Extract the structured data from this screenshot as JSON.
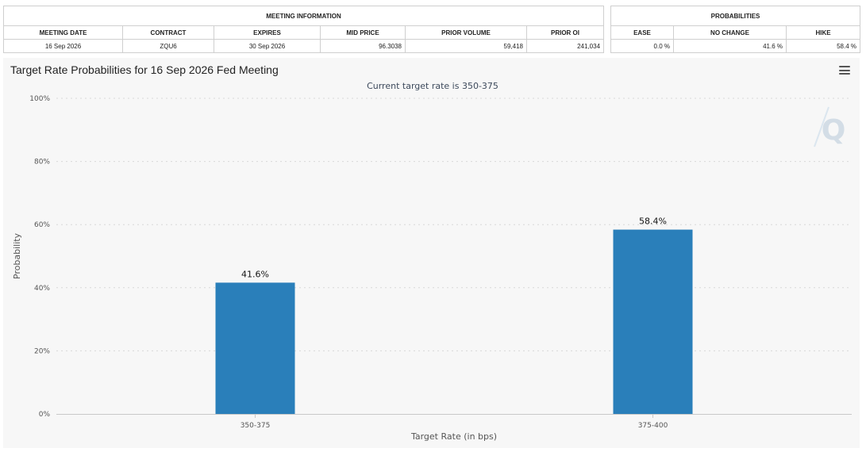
{
  "meeting_info": {
    "group_title": "MEETING INFORMATION",
    "headers": [
      "MEETING DATE",
      "CONTRACT",
      "EXPIRES",
      "MID PRICE",
      "PRIOR VOLUME",
      "PRIOR OI"
    ],
    "row": [
      "16 Sep 2026",
      "ZQU6",
      "30 Sep 2026",
      "96.3038",
      "59,418",
      "241,034"
    ]
  },
  "probabilities": {
    "group_title": "PROBABILITIES",
    "headers": [
      "EASE",
      "NO CHANGE",
      "HIKE"
    ],
    "row": [
      "0.0 %",
      "41.6 %",
      "58.4 %"
    ]
  },
  "colors": {
    "bar": "#2a7fba",
    "panel_bg": "#f7f7f7",
    "grid": "#d8d8d8"
  },
  "icons": {
    "menu": "hamburger-menu-icon",
    "watermark": "q-logo-icon"
  },
  "watermark_text": "Q",
  "chart_data": {
    "type": "bar",
    "title": "Target Rate Probabilities for 16 Sep 2026 Fed Meeting",
    "subtitle": "Current target rate is 350-375",
    "xlabel": "Target Rate (in bps)",
    "ylabel": "Probability",
    "categories": [
      "350-375",
      "375-400"
    ],
    "values": [
      41.6,
      58.4
    ],
    "data_labels": [
      "41.6%",
      "58.4%"
    ],
    "ylim": [
      0,
      100
    ],
    "yticks": [
      0,
      20,
      40,
      60,
      80,
      100
    ],
    "ytick_labels": [
      "0%",
      "20%",
      "40%",
      "60%",
      "80%",
      "100%"
    ],
    "grid": true,
    "legend": "none"
  }
}
